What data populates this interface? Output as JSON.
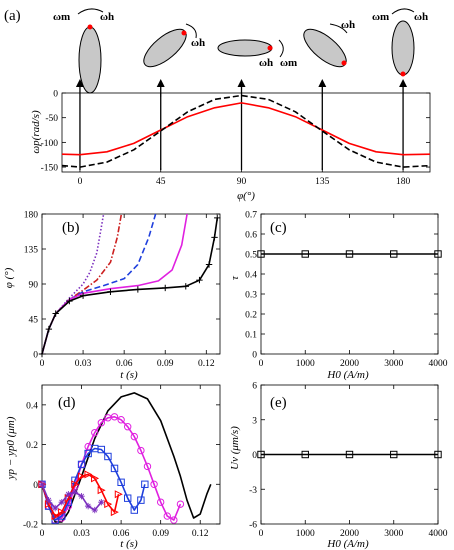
{
  "figure": {
    "panels": {
      "a": "(a)",
      "b": "(b)",
      "c": "(c)",
      "d": "(d)",
      "e": "(e)"
    }
  },
  "chart_data": [
    {
      "id": "a",
      "type": "line",
      "xlabel": "φ(°)",
      "ylabel": "ωp(rad/s)",
      "xlim": [
        -10,
        195
      ],
      "ylim": [
        -160,
        0
      ],
      "xticks": [
        0,
        45,
        90,
        135,
        180
      ],
      "yticks": [
        0,
        -50,
        -100,
        -150
      ],
      "grid": false,
      "series": [
        {
          "style": "solid",
          "color": "#ff0000",
          "x": [
            -10,
            0,
            15,
            30,
            45,
            60,
            75,
            90,
            105,
            120,
            135,
            150,
            165,
            180,
            195
          ],
          "y": [
            -124,
            -125,
            -119,
            -102,
            -75,
            -48,
            -30,
            -20,
            -30,
            -48,
            -75,
            -102,
            -119,
            -125,
            -124
          ]
        },
        {
          "style": "dashed",
          "color": "#000000",
          "x": [
            -10,
            0,
            15,
            30,
            45,
            60,
            75,
            90,
            105,
            120,
            135,
            150,
            165,
            180,
            195
          ],
          "y": [
            -147,
            -150,
            -140,
            -115,
            -77,
            -38,
            -13,
            -5,
            -13,
            -38,
            -77,
            -115,
            -140,
            -150,
            -147
          ]
        }
      ],
      "arrows_at_x": [
        0,
        45,
        90,
        135,
        180
      ],
      "ellipse_labels": [
        "ωm",
        "ωh"
      ]
    },
    {
      "id": "b",
      "type": "line",
      "xlabel": "t (s)",
      "ylabel": "φ (°)",
      "xlim": [
        0,
        0.13
      ],
      "ylim": [
        0,
        180
      ],
      "xticks": [
        0,
        0.03,
        0.06,
        0.09,
        0.12
      ],
      "yticks": [
        0,
        45,
        90,
        135,
        180
      ],
      "series": [
        {
          "color": "#7b2fbe",
          "style": "dotted",
          "x": [
            0,
            0.005,
            0.01,
            0.02,
            0.03,
            0.035,
            0.04,
            0.043,
            0.045
          ],
          "y": [
            0,
            32,
            52,
            72,
            90,
            105,
            130,
            160,
            180
          ]
        },
        {
          "color": "#cc1f1f",
          "style": "dashdot",
          "x": [
            0,
            0.005,
            0.01,
            0.02,
            0.03,
            0.04,
            0.05,
            0.055,
            0.058
          ],
          "y": [
            0,
            32,
            52,
            70,
            82,
            95,
            118,
            150,
            180
          ]
        },
        {
          "color": "#1f3fdd",
          "style": "dashed",
          "x": [
            0,
            0.005,
            0.01,
            0.02,
            0.03,
            0.045,
            0.06,
            0.07,
            0.078,
            0.083
          ],
          "y": [
            0,
            32,
            52,
            70,
            80,
            88,
            97,
            115,
            150,
            180
          ]
        },
        {
          "color": "#e020e0",
          "style": "solid",
          "x": [
            0,
            0.005,
            0.01,
            0.02,
            0.03,
            0.05,
            0.07,
            0.085,
            0.095,
            0.102,
            0.106
          ],
          "y": [
            0,
            32,
            52,
            70,
            78,
            84,
            88,
            94,
            108,
            140,
            180
          ]
        },
        {
          "color": "#000000",
          "style": "solid",
          "marker": "+",
          "x": [
            0,
            0.005,
            0.01,
            0.02,
            0.03,
            0.05,
            0.07,
            0.09,
            0.105,
            0.115,
            0.122,
            0.126,
            0.128
          ],
          "y": [
            0,
            32,
            52,
            68,
            75,
            80,
            83,
            85,
            87,
            95,
            115,
            150,
            175
          ]
        }
      ]
    },
    {
      "id": "c",
      "type": "line",
      "xlabel": "H0 (A/m)",
      "ylabel": "τ",
      "xlim": [
        0,
        4000
      ],
      "ylim": [
        0,
        0.7
      ],
      "xticks": [
        0,
        1000,
        2000,
        3000,
        4000
      ],
      "yticks": [
        0,
        0.1,
        0.2,
        0.3,
        0.4,
        0.5,
        0.6,
        0.7
      ],
      "series": [
        {
          "color": "#000000",
          "marker": "square",
          "x": [
            0,
            1000,
            2000,
            3000,
            4000
          ],
          "y": [
            0.5,
            0.5,
            0.5,
            0.5,
            0.5
          ]
        }
      ]
    },
    {
      "id": "d",
      "type": "line",
      "xlabel": "t (s)",
      "ylabel": "yp − yp0 (μm)",
      "xlim": [
        0,
        0.135
      ],
      "ylim": [
        -0.2,
        0.5
      ],
      "xticks": [
        0,
        0.03,
        0.06,
        0.09,
        0.12
      ],
      "yticks": [
        -0.2,
        0,
        0.2,
        0.4
      ],
      "series": [
        {
          "color": "#000000",
          "marker": "none",
          "x": [
            0,
            0.005,
            0.01,
            0.015,
            0.02,
            0.03,
            0.04,
            0.05,
            0.06,
            0.07,
            0.08,
            0.09,
            0.1,
            0.105,
            0.11,
            0.115,
            0.12,
            0.125,
            0.128
          ],
          "y": [
            0,
            -0.11,
            -0.19,
            -0.19,
            -0.14,
            0.04,
            0.23,
            0.37,
            0.44,
            0.46,
            0.43,
            0.32,
            0.14,
            0.04,
            -0.08,
            -0.17,
            -0.15,
            -0.05,
            0.0
          ]
        },
        {
          "color": "#e020e0",
          "marker": "circle",
          "x": [
            0,
            0.005,
            0.01,
            0.015,
            0.02,
            0.025,
            0.03,
            0.035,
            0.04,
            0.045,
            0.05,
            0.055,
            0.06,
            0.065,
            0.07,
            0.075,
            0.08,
            0.085,
            0.09,
            0.095,
            0.1,
            0.105
          ],
          "y": [
            0,
            -0.11,
            -0.18,
            -0.17,
            -0.11,
            -0.01,
            0.1,
            0.19,
            0.26,
            0.31,
            0.335,
            0.34,
            0.325,
            0.29,
            0.24,
            0.17,
            0.09,
            0.0,
            -0.09,
            -0.16,
            -0.18,
            -0.1
          ]
        },
        {
          "color": "#1f3fdd",
          "marker": "square",
          "x": [
            0,
            0.005,
            0.01,
            0.015,
            0.02,
            0.025,
            0.03,
            0.035,
            0.04,
            0.045,
            0.05,
            0.055,
            0.06,
            0.065,
            0.07,
            0.075,
            0.078
          ],
          "y": [
            0,
            -0.11,
            -0.18,
            -0.16,
            -0.09,
            0.02,
            0.1,
            0.155,
            0.18,
            0.175,
            0.14,
            0.08,
            0.01,
            -0.07,
            -0.13,
            -0.08,
            0.0
          ]
        },
        {
          "color": "#ff0000",
          "marker": "triangle-right",
          "x": [
            0,
            0.005,
            0.01,
            0.015,
            0.02,
            0.025,
            0.03,
            0.035,
            0.04,
            0.045,
            0.05,
            0.055,
            0.058
          ],
          "y": [
            0,
            -0.1,
            -0.16,
            -0.14,
            -0.07,
            0.0,
            0.04,
            0.05,
            0.03,
            -0.03,
            -0.1,
            -0.14,
            -0.05
          ]
        },
        {
          "color": "#7b2fbe",
          "marker": "star",
          "x": [
            0,
            0.005,
            0.01,
            0.015,
            0.02,
            0.025,
            0.03,
            0.035,
            0.04,
            0.045
          ],
          "y": [
            0,
            -0.08,
            -0.12,
            -0.09,
            -0.05,
            -0.04,
            -0.06,
            -0.11,
            -0.13,
            -0.09
          ]
        }
      ]
    },
    {
      "id": "e",
      "type": "line",
      "xlabel": "H0 (A/m)",
      "ylabel": "Uv (μm/s)",
      "xlim": [
        0,
        4000
      ],
      "ylim": [
        -6,
        6
      ],
      "xticks": [
        0,
        1000,
        2000,
        3000,
        4000
      ],
      "yticks": [
        -6,
        -3,
        0,
        3,
        6
      ],
      "series": [
        {
          "color": "#000000",
          "marker": "square",
          "x": [
            0,
            1000,
            2000,
            3000,
            4000
          ],
          "y": [
            0,
            0,
            0,
            0,
            0
          ]
        }
      ]
    }
  ]
}
